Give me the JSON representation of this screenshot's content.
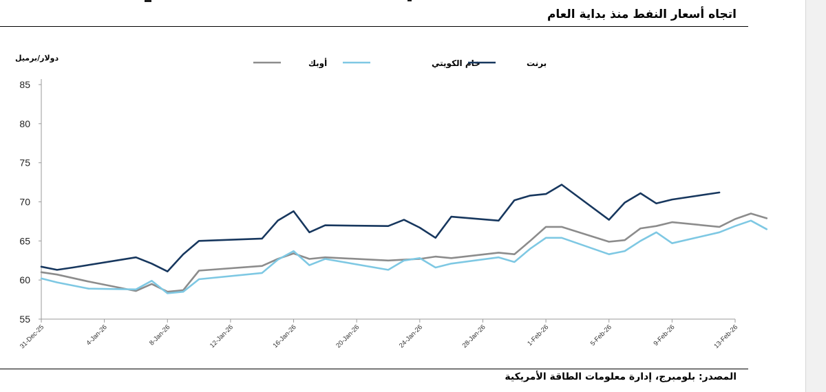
{
  "document": {
    "title": "اتجاه أسعار النفط منذ بداية العام",
    "source": "المصدر: بلومبرج، إدارة معلومات الطاقة الأمريكية"
  },
  "chart_data": {
    "type": "line",
    "ylabel": "دولار/برميل",
    "ylim": [
      55,
      85
    ],
    "yticks": [
      55,
      60,
      65,
      70,
      75,
      80,
      85
    ],
    "xlim": [
      "2025-12-31",
      "2026-02-13"
    ],
    "xtick_labels": [
      "31-Dec-25",
      "4-Jan-26",
      "8-Jan-26",
      "12-Jan-26",
      "16-Jan-26",
      "20-Jan-26",
      "24-Jan-26",
      "28-Jan-26",
      "1-Feb-26",
      "5-Feb-26",
      "9-Feb-26",
      "13-Feb-26"
    ],
    "legend_position": "top",
    "grid": false,
    "series": [
      {
        "name": "برنت",
        "color": "#17375e",
        "points": [
          [
            "2025-12-31",
            61.7
          ],
          [
            "2026-01-01",
            61.3
          ],
          [
            "2026-01-02",
            61.6
          ],
          [
            "2026-01-06",
            62.9
          ],
          [
            "2026-01-07",
            62.1
          ],
          [
            "2026-01-08",
            61.1
          ],
          [
            "2026-01-09",
            63.3
          ],
          [
            "2026-01-10",
            65.0
          ],
          [
            "2026-01-14",
            65.3
          ],
          [
            "2026-01-15",
            67.6
          ],
          [
            "2026-01-16",
            68.8
          ],
          [
            "2026-01-17",
            66.1
          ],
          [
            "2026-01-18",
            67.0
          ],
          [
            "2026-01-22",
            66.9
          ],
          [
            "2026-01-23",
            67.7
          ],
          [
            "2026-01-24",
            66.7
          ],
          [
            "2026-01-25",
            65.4
          ],
          [
            "2026-01-26",
            68.1
          ],
          [
            "2026-01-29",
            67.6
          ],
          [
            "2026-01-30",
            70.2
          ],
          [
            "2026-01-31",
            70.8
          ],
          [
            "2026-02-01",
            71.0
          ],
          [
            "2026-02-02",
            72.2
          ],
          [
            "2026-02-05",
            67.7
          ],
          [
            "2026-02-06",
            69.9
          ],
          [
            "2026-02-07",
            71.1
          ],
          [
            "2026-02-08",
            69.8
          ],
          [
            "2026-02-09",
            70.3
          ],
          [
            "2026-02-12",
            71.2
          ]
        ]
      },
      {
        "name": "خام الكويتي",
        "color": "#7ec8e3",
        "points": [
          [
            "2025-12-31",
            60.2
          ],
          [
            "2026-01-01",
            59.7
          ],
          [
            "2026-01-03",
            58.9
          ],
          [
            "2026-01-06",
            58.8
          ],
          [
            "2026-01-07",
            59.9
          ],
          [
            "2026-01-08",
            58.3
          ],
          [
            "2026-01-09",
            58.5
          ],
          [
            "2026-01-10",
            60.1
          ],
          [
            "2026-01-14",
            60.9
          ],
          [
            "2026-01-15",
            62.6
          ],
          [
            "2026-01-16",
            63.7
          ],
          [
            "2026-01-17",
            61.9
          ],
          [
            "2026-01-18",
            62.7
          ],
          [
            "2026-01-22",
            61.3
          ],
          [
            "2026-01-23",
            62.5
          ],
          [
            "2026-01-24",
            62.8
          ],
          [
            "2026-01-25",
            61.6
          ],
          [
            "2026-01-26",
            62.1
          ],
          [
            "2026-01-29",
            62.9
          ],
          [
            "2026-01-30",
            62.3
          ],
          [
            "2026-01-31",
            64.0
          ],
          [
            "2026-02-01",
            65.4
          ],
          [
            "2026-02-02",
            65.4
          ],
          [
            "2026-02-05",
            63.3
          ],
          [
            "2026-02-06",
            63.7
          ],
          [
            "2026-02-07",
            65.0
          ],
          [
            "2026-02-08",
            66.1
          ],
          [
            "2026-02-09",
            64.7
          ],
          [
            "2026-02-12",
            66.1
          ],
          [
            "2026-02-13",
            66.9
          ],
          [
            "2026-02-14",
            67.6
          ],
          [
            "2026-02-15",
            66.5
          ]
        ]
      },
      {
        "name": "أوبك",
        "color": "#8c8c8c",
        "points": [
          [
            "2025-12-31",
            61.0
          ],
          [
            "2026-01-01",
            60.7
          ],
          [
            "2026-01-03",
            59.8
          ],
          [
            "2026-01-06",
            58.6
          ],
          [
            "2026-01-07",
            59.5
          ],
          [
            "2026-01-08",
            58.5
          ],
          [
            "2026-01-09",
            58.7
          ],
          [
            "2026-01-10",
            61.2
          ],
          [
            "2026-01-14",
            61.8
          ],
          [
            "2026-01-15",
            62.7
          ],
          [
            "2026-01-16",
            63.4
          ],
          [
            "2026-01-17",
            62.7
          ],
          [
            "2026-01-18",
            62.9
          ],
          [
            "2026-01-22",
            62.5
          ],
          [
            "2026-01-23",
            62.6
          ],
          [
            "2026-01-24",
            62.7
          ],
          [
            "2026-01-25",
            63.0
          ],
          [
            "2026-01-26",
            62.8
          ],
          [
            "2026-01-29",
            63.5
          ],
          [
            "2026-01-30",
            63.3
          ],
          [
            "2026-01-31",
            65.0
          ],
          [
            "2026-02-01",
            66.8
          ],
          [
            "2026-02-02",
            66.8
          ],
          [
            "2026-02-05",
            64.9
          ],
          [
            "2026-02-06",
            65.1
          ],
          [
            "2026-02-07",
            66.6
          ],
          [
            "2026-02-08",
            66.9
          ],
          [
            "2026-02-09",
            67.4
          ],
          [
            "2026-02-12",
            66.8
          ],
          [
            "2026-02-13",
            67.8
          ],
          [
            "2026-02-14",
            68.5
          ],
          [
            "2026-02-15",
            67.9
          ]
        ]
      }
    ]
  }
}
